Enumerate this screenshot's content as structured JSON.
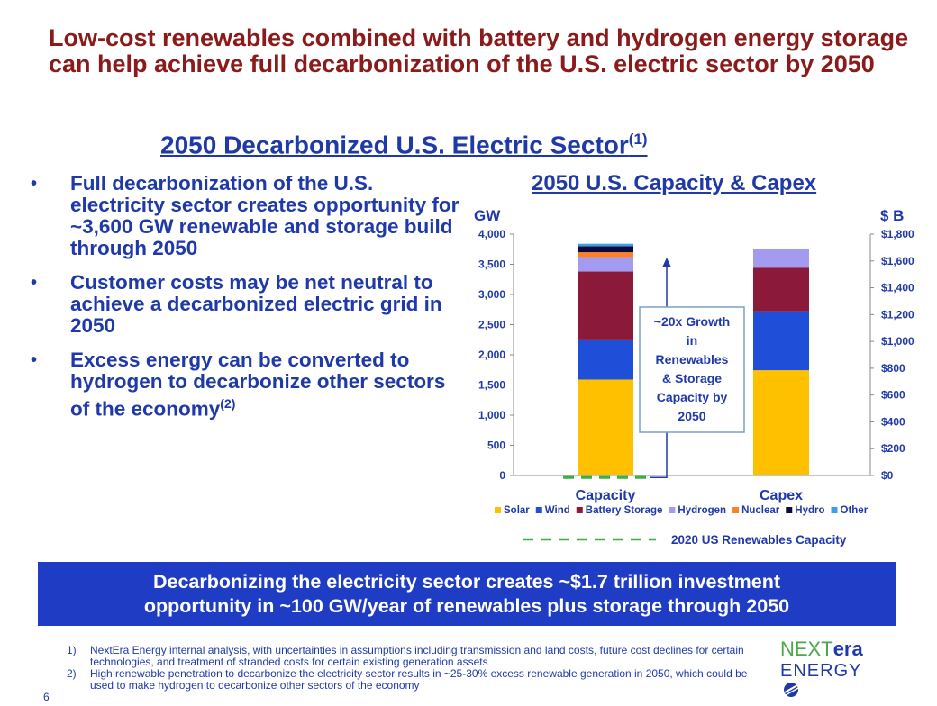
{
  "slide": {
    "title": "Low-cost renewables combined with battery and hydrogen energy storage can help achieve full decarbonization of the U.S. electric sector by 2050",
    "subtitle": "2050 Decarbonized U.S. Electric Sector",
    "subtitle_note": "(1)",
    "page_number": "6"
  },
  "bullets": [
    {
      "text": "Full decarbonization of the U.S. electricity sector creates opportunity for ~3,600 GW renewable and storage build through 2050",
      "note": ""
    },
    {
      "text": "Customer costs may be net neutral to achieve a decarbonized electric grid in 2050",
      "note": ""
    },
    {
      "text": "Excess energy can be converted to hydrogen to decarbonize other sectors of the economy",
      "note": "(2)"
    }
  ],
  "bullet_glyph": "•",
  "banner": {
    "line1": "Decarbonizing the electricity sector creates ~$1.7 trillion investment",
    "line2": "opportunity in ~100 GW/year of renewables plus storage through 2050"
  },
  "footnotes": [
    {
      "num": "1)",
      "text": "NextEra Energy internal analysis, with uncertainties in assumptions including transmission and land costs, future cost declines for certain technologies, and treatment of stranded costs for certain existing generation assets"
    },
    {
      "num": "2)",
      "text": "High renewable penetration to decarbonize the electricity sector results in ~25-30% excess renewable generation in 2050, which could be used to make hydrogen to decarbonize other sectors of the economy"
    }
  ],
  "logo": {
    "next": "NEXT",
    "era": "era",
    "energy": "ENERGY"
  },
  "chart_data": {
    "type": "bar",
    "stacked": true,
    "title": "2050 U.S. Capacity & Capex",
    "categories": [
      "Capacity",
      "Capex"
    ],
    "y_left": {
      "label": "GW",
      "range": [
        0,
        4000
      ],
      "ticks": [
        "0",
        "500",
        "1,000",
        "1,500",
        "2,000",
        "2,500",
        "3,000",
        "3,500",
        "4,000"
      ]
    },
    "y_right": {
      "label": "$ B",
      "range": [
        0,
        1800
      ],
      "ticks": [
        "$0",
        "$200",
        "$400",
        "$600",
        "$800",
        "$1,000",
        "$1,200",
        "$1,400",
        "$1,600",
        "$1,800"
      ]
    },
    "series": [
      {
        "name": "Solar",
        "color": "#ffc000",
        "values": [
          1590,
          785
        ]
      },
      {
        "name": "Wind",
        "color": "#1f4fd8",
        "values": [
          650,
          440
        ]
      },
      {
        "name": "Battery Storage",
        "color": "#8b1a3a",
        "values": [
          1140,
          325
        ]
      },
      {
        "name": "Hydrogen",
        "color": "#a29bf0",
        "values": [
          240,
          140
        ]
      },
      {
        "name": "Nuclear",
        "color": "#ff7f27",
        "values": [
          80,
          0
        ]
      },
      {
        "name": "Hydro",
        "color": "#0a0a3c",
        "values": [
          100,
          0
        ]
      },
      {
        "name": "Other",
        "color": "#3aa0e8",
        "values": [
          40,
          0
        ]
      }
    ],
    "reference_line": {
      "name": "2020 US Renewables Capacity",
      "value": 100,
      "color": "#3cb043"
    },
    "annotation": "~20x Growth in Renewables & Storage Capacity by 2050",
    "legend_position": "bottom",
    "grid": false
  }
}
